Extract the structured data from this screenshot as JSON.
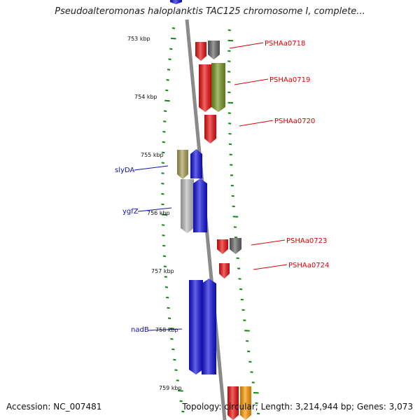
{
  "title": "Pseudoalteromonas haloplanktis TAC125 chromosome I, complete...",
  "footer": {
    "accession": "Accession: NC_007481",
    "summary": "Topology: circular; Length: 3,214,944 bp; Genes: 3,073"
  },
  "colors": {
    "backbone": "#8a8a8a",
    "tick": "#118811",
    "red_label": "#dd0000",
    "blue_label": "#1111aa"
  },
  "tick_labels": [
    "753 kbp",
    "754 kbp",
    "755 kbp",
    "756 kbp",
    "757 kbp",
    "758 kbp",
    "759 kbp"
  ],
  "genes": [
    {
      "label": "PSHAa0718",
      "color": "#ee1111",
      "strand": "+"
    },
    {
      "label": "",
      "color": "#666666",
      "strand": "+"
    },
    {
      "label": "PSHAa0719",
      "color": "#ee1111",
      "strand": "+"
    },
    {
      "label": "",
      "color": "#779922",
      "strand": "+"
    },
    {
      "label": "PSHAa0720",
      "color": "#ee1111",
      "strand": "+"
    },
    {
      "label": "slyDA",
      "color": "#aaa055",
      "strand": "+"
    },
    {
      "label": "",
      "color": "#1111dd",
      "strand": "-"
    },
    {
      "label": "ygfZ",
      "color": "#bdbdbd",
      "strand": "+"
    },
    {
      "label": "",
      "color": "#1111dd",
      "strand": "-"
    },
    {
      "label": "PSHAa0723",
      "color": "#ee1111",
      "strand": "+"
    },
    {
      "label": "",
      "color": "#666666",
      "strand": "+"
    },
    {
      "label": "PSHAa0724",
      "color": "#ee1111",
      "strand": "+"
    },
    {
      "label": "nadB",
      "color": "#1111dd",
      "strand": "+"
    },
    {
      "label": "",
      "color": "#1111dd",
      "strand": "-"
    },
    {
      "label": "",
      "color": "#ee1111",
      "strand": "+"
    },
    {
      "label": "",
      "color": "#ff9900",
      "strand": "+"
    },
    {
      "label": "",
      "color": "#1111dd",
      "strand": "+"
    }
  ]
}
